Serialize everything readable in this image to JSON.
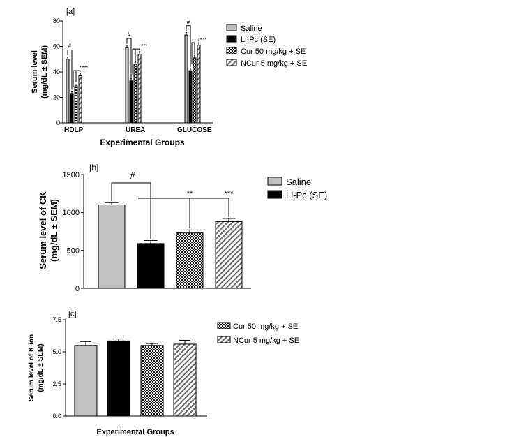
{
  "series_colors": {
    "saline": "#c0c0c0",
    "lipc": "#000000",
    "cur": "#5a5a5a",
    "ncur": "#e0e0e0"
  },
  "legend": {
    "saline": "Saline",
    "lipc": "Li-Pc (SE)",
    "cur": "Cur 50 mg/kg + SE",
    "ncur": "NCur 5 mg/kg + SE"
  },
  "chart_data": [
    {
      "panel": "[a]",
      "type": "bar",
      "ylabel_line1": "Serum level",
      "ylabel_line2": "(mg/dL ± SEM)",
      "xlabel": "Experimental Groups",
      "categories": [
        "HDLP",
        "UREA",
        "GLUCOSE"
      ],
      "ylim": [
        0,
        80
      ],
      "yticks": [
        0,
        20,
        40,
        60,
        80
      ],
      "series": [
        {
          "name": "Saline",
          "values": [
            50,
            59,
            69
          ],
          "errors": [
            1.5,
            2,
            2
          ]
        },
        {
          "name": "Li-Pc (SE)",
          "values": [
            23,
            33,
            41
          ],
          "errors": [
            1.5,
            2,
            2
          ]
        },
        {
          "name": "Cur 50 mg/kg + SE",
          "values": [
            29,
            46,
            51
          ],
          "errors": [
            1.5,
            2,
            2
          ]
        },
        {
          "name": "NCur 5 mg/kg + SE",
          "values": [
            37,
            54,
            61
          ],
          "errors": [
            1.5,
            2,
            2
          ]
        }
      ],
      "annotations": {
        "hash": "#",
        "double": "**",
        "triple": "***"
      }
    },
    {
      "panel": "[b]",
      "type": "bar",
      "ylabel_line1": "Serum level of CK",
      "ylabel_line2": "(mg/dL ± SEM)",
      "ylim": [
        0,
        1500
      ],
      "yticks": [
        0,
        500,
        1000,
        1500
      ],
      "series": [
        {
          "name": "Saline",
          "value": 1100,
          "error": 30
        },
        {
          "name": "Li-Pc (SE)",
          "value": 590,
          "error": 40
        },
        {
          "name": "Cur 50 mg/kg + SE",
          "value": 730,
          "error": 40
        },
        {
          "name": "NCur 5 mg/kg + SE",
          "value": 880,
          "error": 40
        }
      ],
      "annotations": {
        "hash": "#",
        "double": "**",
        "triple": "***"
      }
    },
    {
      "panel": "[c]",
      "type": "bar",
      "ylabel_line1": "Serum level of K ion",
      "ylabel_line2": "(mg/dL ± SEM)",
      "xlabel": "Experimental Groups",
      "ylim": [
        0,
        7.5
      ],
      "yticks": [
        "0.0",
        "2.5",
        "5.0",
        "7.5"
      ],
      "series": [
        {
          "name": "Saline",
          "value": 5.5,
          "error": 0.3
        },
        {
          "name": "Li-Pc (SE)",
          "value": 5.85,
          "error": 0.15
        },
        {
          "name": "Cur 50 mg/kg + SE",
          "value": 5.5,
          "error": 0.15
        },
        {
          "name": "NCur 5 mg/kg + SE",
          "value": 5.6,
          "error": 0.3
        }
      ]
    }
  ]
}
